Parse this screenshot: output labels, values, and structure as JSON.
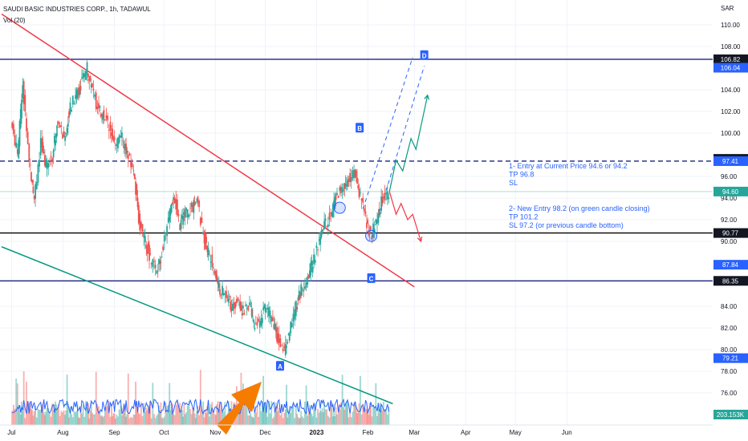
{
  "chart_data": {
    "type": "candlestick",
    "title": "SAUDI BASIC INDUSTRIES CORP., 1h, TADAWUL",
    "legend_lines": [
      "SAUDI BASIC INDUSTRIES CORP., 1h, TADAWUL",
      "Vol (20)"
    ],
    "currency_label": "SAR",
    "y_ticks": [
      "110.00",
      "108.00",
      "104.00",
      "102.00",
      "100.00",
      "96.00",
      "94.00",
      "92.00",
      "90.00",
      "84.00",
      "82.00",
      "80.00",
      "78.00",
      "76.00"
    ],
    "x_ticks": [
      "Jul",
      "Aug",
      "Sep",
      "Oct",
      "Nov",
      "Dec",
      "2023",
      "Feb",
      "Mar",
      "Apr",
      "May",
      "Jun"
    ],
    "price_tags": [
      {
        "label": "106.82",
        "value": 106.82,
        "bg": "#131722",
        "fg": "#ffffff"
      },
      {
        "label": "106.04",
        "value": 106.04,
        "bg": "#2962ff",
        "fg": "#ffffff"
      },
      {
        "label": "97.62",
        "value": 97.62,
        "bg": "#131722",
        "fg": "#ffffff"
      },
      {
        "label": "97.41",
        "value": 97.41,
        "bg": "#2962ff",
        "fg": "#ffffff"
      },
      {
        "label": "94.60",
        "value": 94.6,
        "bg": "#26a69a",
        "fg": "#ffffff"
      },
      {
        "label": "90.77",
        "value": 90.77,
        "bg": "#131722",
        "fg": "#ffffff"
      },
      {
        "label": "87.84",
        "value": 87.84,
        "bg": "#2962ff",
        "fg": "#ffffff"
      },
      {
        "label": "86.35",
        "value": 86.35,
        "bg": "#131722",
        "fg": "#ffffff"
      },
      {
        "label": "79.21",
        "value": 79.21,
        "bg": "#2962ff",
        "fg": "#ffffff"
      },
      {
        "label": "203.153K",
        "value": null,
        "bg": "#26a69a",
        "fg": "#ffffff"
      }
    ],
    "horizontal_levels": [
      {
        "value": 106.82,
        "color": "#1a237e",
        "style": "solid"
      },
      {
        "value": 97.41,
        "color": "#1a237e",
        "style": "dashed"
      },
      {
        "value": 90.77,
        "color": "#000000",
        "style": "solid"
      },
      {
        "value": 86.35,
        "color": "#1a237e",
        "style": "solid"
      }
    ],
    "price_series": [
      {
        "date": "2022-07-01",
        "close": 101.0
      },
      {
        "date": "2022-07-05",
        "close": 98.0
      },
      {
        "date": "2022-07-08",
        "close": 104.5
      },
      {
        "date": "2022-07-12",
        "close": 97.5
      },
      {
        "date": "2022-07-15",
        "close": 94.0
      },
      {
        "date": "2022-07-19",
        "close": 99.0
      },
      {
        "date": "2022-07-22",
        "close": 97.0
      },
      {
        "date": "2022-07-26",
        "close": 98.0
      },
      {
        "date": "2022-07-29",
        "close": 101.0
      },
      {
        "date": "2022-08-02",
        "close": 99.5
      },
      {
        "date": "2022-08-05",
        "close": 102.0
      },
      {
        "date": "2022-08-09",
        "close": 103.5
      },
      {
        "date": "2022-08-12",
        "close": 104.5
      },
      {
        "date": "2022-08-16",
        "close": 106.0
      },
      {
        "date": "2022-08-19",
        "close": 104.0
      },
      {
        "date": "2022-08-23",
        "close": 102.0
      },
      {
        "date": "2022-08-26",
        "close": 101.5
      },
      {
        "date": "2022-08-30",
        "close": 100.5
      },
      {
        "date": "2022-09-02",
        "close": 99.0
      },
      {
        "date": "2022-09-06",
        "close": 99.5
      },
      {
        "date": "2022-09-09",
        "close": 98.0
      },
      {
        "date": "2022-09-13",
        "close": 96.5
      },
      {
        "date": "2022-09-16",
        "close": 92.0
      },
      {
        "date": "2022-09-20",
        "close": 90.0
      },
      {
        "date": "2022-09-23",
        "close": 88.5
      },
      {
        "date": "2022-09-27",
        "close": 87.0
      },
      {
        "date": "2022-09-30",
        "close": 89.0
      },
      {
        "date": "2022-10-04",
        "close": 92.0
      },
      {
        "date": "2022-10-07",
        "close": 94.5
      },
      {
        "date": "2022-10-11",
        "close": 91.5
      },
      {
        "date": "2022-10-14",
        "close": 92.5
      },
      {
        "date": "2022-10-18",
        "close": 93.0
      },
      {
        "date": "2022-10-21",
        "close": 94.0
      },
      {
        "date": "2022-10-25",
        "close": 90.5
      },
      {
        "date": "2022-10-28",
        "close": 89.0
      },
      {
        "date": "2022-11-01",
        "close": 87.0
      },
      {
        "date": "2022-11-04",
        "close": 85.5
      },
      {
        "date": "2022-11-08",
        "close": 85.0
      },
      {
        "date": "2022-11-11",
        "close": 84.0
      },
      {
        "date": "2022-11-15",
        "close": 84.5
      },
      {
        "date": "2022-11-18",
        "close": 83.5
      },
      {
        "date": "2022-11-22",
        "close": 84.0
      },
      {
        "date": "2022-11-25",
        "close": 82.0
      },
      {
        "date": "2022-11-29",
        "close": 83.0
      },
      {
        "date": "2022-12-02",
        "close": 84.0
      },
      {
        "date": "2022-12-06",
        "close": 82.5
      },
      {
        "date": "2022-12-09",
        "close": 81.0
      },
      {
        "date": "2022-12-13",
        "close": 80.0
      },
      {
        "date": "2022-12-16",
        "close": 81.5
      },
      {
        "date": "2022-12-20",
        "close": 84.0
      },
      {
        "date": "2022-12-23",
        "close": 85.5
      },
      {
        "date": "2022-12-27",
        "close": 86.5
      },
      {
        "date": "2022-12-30",
        "close": 88.0
      },
      {
        "date": "2023-01-03",
        "close": 90.0
      },
      {
        "date": "2023-01-06",
        "close": 91.5
      },
      {
        "date": "2023-01-10",
        "close": 92.5
      },
      {
        "date": "2023-01-13",
        "close": 94.0
      },
      {
        "date": "2023-01-17",
        "close": 95.0
      },
      {
        "date": "2023-01-20",
        "close": 95.5
      },
      {
        "date": "2023-01-24",
        "close": 96.5
      },
      {
        "date": "2023-01-27",
        "close": 94.5
      },
      {
        "date": "2023-01-31",
        "close": 92.0
      },
      {
        "date": "2023-02-03",
        "close": 90.5
      },
      {
        "date": "2023-02-07",
        "close": 92.0
      },
      {
        "date": "2023-02-10",
        "close": 94.0
      },
      {
        "date": "2023-02-14",
        "close": 94.6
      }
    ],
    "trendlines": [
      {
        "name": "resistance",
        "color": "#f23645",
        "from": {
          "date": "2022-06-25",
          "price": 111.0
        },
        "to": {
          "date": "2023-03-01",
          "price": 85.8
        }
      },
      {
        "name": "support",
        "color": "#089981",
        "from": {
          "date": "2022-06-25",
          "price": 89.5
        },
        "to": {
          "date": "2023-02-16",
          "price": 75.0
        }
      },
      {
        "name": "channel-low",
        "color": "#2962ff",
        "style": "dashed",
        "from": {
          "date": "2023-02-03",
          "price": 90.2
        },
        "to": {
          "date": "2023-03-07",
          "price": 106.2
        }
      },
      {
        "name": "channel-mid",
        "color": "#2962ff",
        "style": "dashed",
        "from": {
          "date": "2023-01-29",
          "price": 93.0
        },
        "to": {
          "date": "2023-02-28",
          "price": 107.0
        }
      }
    ],
    "projections": [
      {
        "name": "bull-path",
        "color": "#089981",
        "points": [
          {
            "date": "2023-02-14",
            "price": 94.6
          },
          {
            "date": "2023-02-18",
            "price": 97.5
          },
          {
            "date": "2023-02-22",
            "price": 96.5
          },
          {
            "date": "2023-02-27",
            "price": 99.5
          },
          {
            "date": "2023-03-02",
            "price": 98.5
          },
          {
            "date": "2023-03-09",
            "price": 103.5
          }
        ]
      },
      {
        "name": "bear-path",
        "color": "#f23645",
        "points": [
          {
            "date": "2023-02-14",
            "price": 94.6
          },
          {
            "date": "2023-02-18",
            "price": 92.5
          },
          {
            "date": "2023-02-21",
            "price": 93.5
          },
          {
            "date": "2023-02-25",
            "price": 92.0
          },
          {
            "date": "2023-02-28",
            "price": 92.5
          },
          {
            "date": "2023-03-05",
            "price": 90.0
          }
        ]
      }
    ],
    "markers": [
      {
        "label": "A",
        "date": "2022-12-10",
        "price": 78.5
      },
      {
        "label": "B",
        "date": "2023-01-27",
        "price": 100.5
      },
      {
        "label": "C",
        "date": "2023-02-03",
        "price": 86.6
      },
      {
        "label": "D",
        "date": "2023-03-07",
        "price": 107.2
      }
    ],
    "circles": [
      {
        "date": "2023-01-15",
        "price": 93.1
      },
      {
        "date": "2023-02-03",
        "price": 90.5
      }
    ],
    "annotations": [
      {
        "lines": [
          "1- Entry at Current Price 94.6 or 94.2",
          "TP 96.8",
          "SL"
        ]
      },
      {
        "lines": [
          "2- New Entry 98.2 (on green candle closing)",
          "TP 101.2",
          "SL 97.2 (or previous candle bottom)"
        ]
      }
    ],
    "volume_note": "Vol (20)",
    "up_color": "#26a69a",
    "down_color": "#ef5350",
    "arrow_color": "#f57c00"
  }
}
